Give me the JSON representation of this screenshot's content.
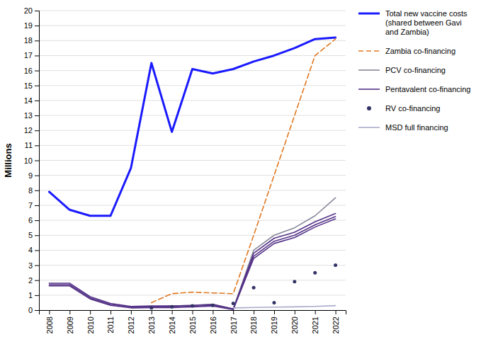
{
  "chart_data": {
    "type": "line",
    "ylabel": "Millions",
    "xlim": [
      2007.5,
      2022.5
    ],
    "xticks": [
      2008,
      2009,
      2010,
      2011,
      2012,
      2013,
      2014,
      2015,
      2016,
      2017,
      2018,
      2019,
      2020,
      2021,
      2022
    ],
    "ylim": [
      0,
      20
    ],
    "yticks": [
      0,
      1,
      2,
      3,
      4,
      5,
      6,
      7,
      8,
      9,
      10,
      11,
      12,
      13,
      14,
      15,
      16,
      17,
      18,
      19,
      20
    ],
    "grid": "y",
    "legend": "right",
    "series": [
      {
        "name": "Total new vaccine costs\n(shared between Gavi\nand Zambia)",
        "type": "line",
        "color": "#1a1aff",
        "x": [
          2008,
          2009,
          2010,
          2011,
          2012,
          2013,
          2014,
          2015,
          2016,
          2017,
          2018,
          2019,
          2020,
          2021,
          2022
        ],
        "values": [
          7.9,
          6.7,
          6.3,
          6.3,
          9.5,
          16.5,
          11.9,
          16.1,
          15.8,
          16.1,
          16.6,
          17.0,
          17.5,
          18.1,
          18.2
        ]
      },
      {
        "name": "Zambia co-financing",
        "type": "line",
        "line_style": "dashed",
        "color": "#e07820",
        "x": [
          2013,
          2014,
          2015,
          2016,
          2017,
          2018,
          2019,
          2020,
          2021,
          2022
        ],
        "values": [
          0.5,
          1.1,
          1.2,
          1.15,
          1.1,
          5.0,
          9.0,
          13.0,
          17.0,
          18.1
        ]
      },
      {
        "name": "PCV co-financing",
        "type": "line",
        "color": "#888899",
        "x": [
          2013,
          2014,
          2015,
          2016,
          2017,
          2018,
          2019,
          2020,
          2021,
          2022
        ],
        "values": [
          0.2,
          0.28,
          0.32,
          0.4,
          0.08,
          4.0,
          5.0,
          5.5,
          6.3,
          7.5
        ]
      },
      {
        "name": "Pentavalent co-financing",
        "type": "line",
        "color": "#553388",
        "x": [
          2008,
          2009,
          2010,
          2011,
          2012,
          2013,
          2014,
          2015,
          2016,
          2017,
          2018,
          2019,
          2020,
          2021,
          2022
        ],
        "values": [
          1.8,
          1.8,
          0.9,
          0.45,
          0.25,
          0.28,
          0.28,
          0.32,
          0.38,
          0.08,
          3.8,
          4.8,
          5.2,
          5.9,
          6.45
        ]
      },
      {
        "type": "line",
        "color": "#553388",
        "x": [
          2008,
          2009,
          2010,
          2011,
          2012,
          2013,
          2014,
          2015,
          2016,
          2017,
          2018,
          2019,
          2020,
          2021,
          2022
        ],
        "values": [
          1.7,
          1.7,
          0.82,
          0.38,
          0.2,
          0.22,
          0.22,
          0.26,
          0.32,
          0.06,
          3.6,
          4.6,
          5.0,
          5.7,
          6.25
        ]
      },
      {
        "type": "line",
        "color": "#553388",
        "x": [
          2008,
          2009,
          2010,
          2011,
          2012,
          2013,
          2014,
          2015,
          2016,
          2017,
          2018,
          2019,
          2020,
          2021,
          2022
        ],
        "values": [
          1.62,
          1.62,
          0.75,
          0.32,
          0.15,
          0.17,
          0.17,
          0.21,
          0.27,
          0.04,
          3.45,
          4.45,
          4.85,
          5.55,
          6.1
        ]
      },
      {
        "name": "RV co-financing",
        "type": "scatter",
        "marker": "circle",
        "color": "#333366",
        "x": [
          2013,
          2014,
          2015,
          2016,
          2017,
          2018,
          2019,
          2020,
          2021,
          2022
        ],
        "values": [
          0.15,
          0.22,
          0.28,
          0.32,
          0.45,
          1.5,
          0.5,
          1.9,
          2.5,
          3.0
        ]
      },
      {
        "name": "MSD full financing",
        "type": "line",
        "color": "#aaaacc",
        "x": [
          2017,
          2018,
          2019,
          2020,
          2021,
          2022
        ],
        "values": [
          0.15,
          0.18,
          0.2,
          0.22,
          0.25,
          0.3
        ]
      }
    ]
  }
}
